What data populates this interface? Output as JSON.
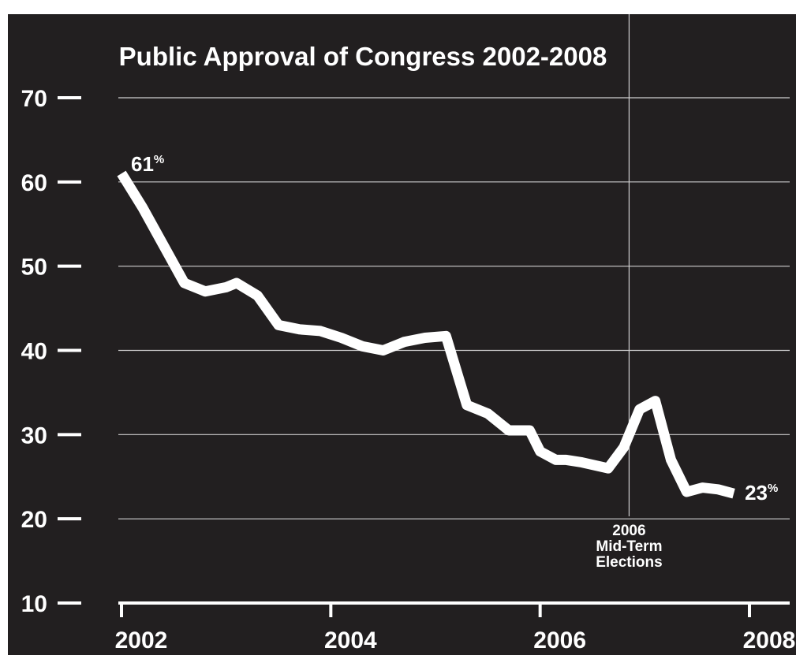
{
  "chart_data": {
    "type": "line",
    "title": "Public Approval of Congress 2002-2008",
    "xlabel": "",
    "ylabel": "",
    "xlim": [
      2002,
      2008
    ],
    "ylim": [
      10,
      70
    ],
    "x_ticks": [
      "2002",
      "2004",
      "2006",
      "2008"
    ],
    "y_ticks": [
      "70",
      "60",
      "50",
      "40",
      "30",
      "20",
      "10"
    ],
    "grid": "horizontal",
    "background_color": "#221f20",
    "line_color": "#ffffff",
    "series": [
      {
        "x": [
          2002.0,
          2002.2,
          2002.4,
          2002.6,
          2002.8,
          2003.0,
          2003.1,
          2003.3,
          2003.5,
          2003.7,
          2003.9,
          2004.1,
          2004.3,
          2004.5,
          2004.7,
          2004.9,
          2005.1,
          2005.3,
          2005.5,
          2005.7,
          2005.9,
          2006.0,
          2006.15,
          2006.25,
          2006.4,
          2006.65,
          2006.8,
          2006.95,
          2007.1,
          2007.25,
          2007.4,
          2007.55,
          2007.7,
          2007.85
        ],
        "y": [
          61,
          57,
          52.5,
          48,
          47,
          47.5,
          48,
          46.5,
          43,
          42.5,
          42.3,
          41.5,
          40.5,
          40,
          41,
          41.5,
          41.7,
          33.5,
          32.5,
          30.5,
          30.5,
          28,
          27,
          27,
          26.7,
          26,
          28.5,
          33,
          34,
          27,
          23.2,
          23.7,
          23.5,
          23
        ]
      }
    ],
    "annotations": [
      {
        "number": "61",
        "suffix": "%",
        "x": 2002.0,
        "y": 61
      },
      {
        "number": "23",
        "suffix": "%",
        "x": 2007.85,
        "y": 23
      }
    ],
    "vline": {
      "x": 2006.85,
      "label_lines": [
        "2006",
        "Mid-Term",
        "Elections"
      ]
    }
  }
}
